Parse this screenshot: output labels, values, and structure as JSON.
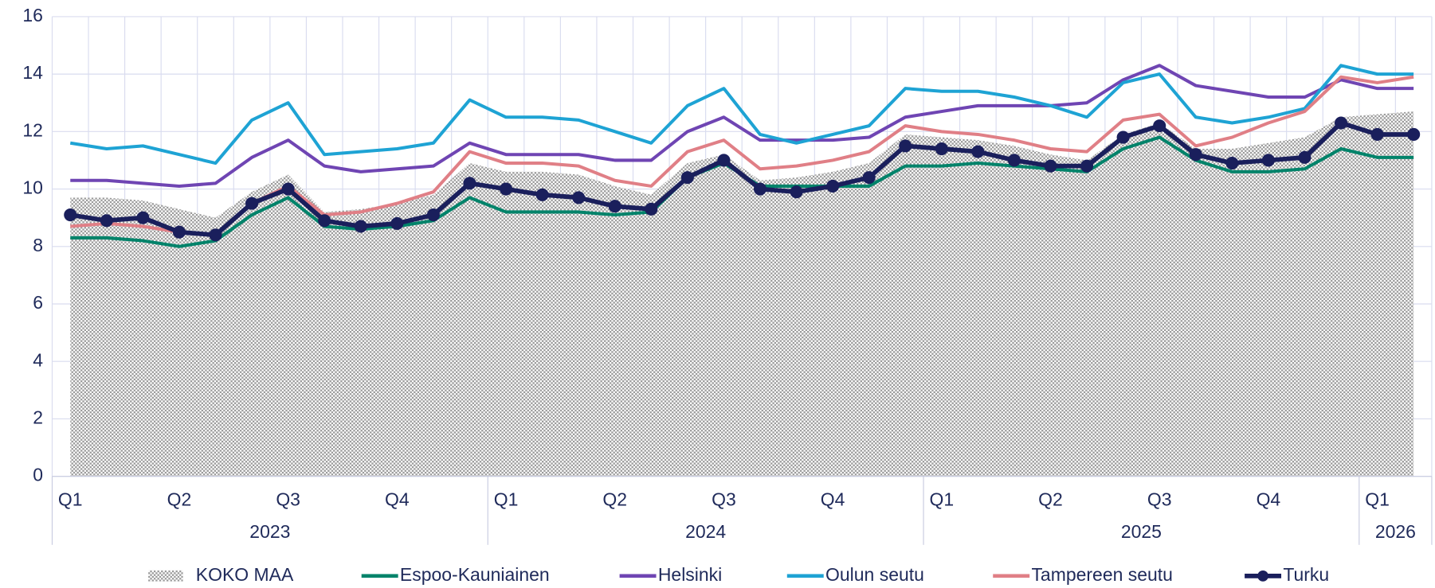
{
  "chart_data": {
    "type": "line",
    "categories": [
      "Q1",
      null,
      null,
      "Q2",
      null,
      null,
      "Q3",
      null,
      null,
      "Q4",
      null,
      null,
      "Q1",
      null,
      null,
      "Q2",
      null,
      null,
      "Q3",
      null,
      null,
      "Q4",
      null,
      null,
      "Q1",
      null,
      null,
      "Q2",
      null,
      null,
      "Q3",
      null,
      null,
      "Q4",
      null,
      null,
      "Q1",
      null
    ],
    "year_groups": [
      {
        "label": "2023",
        "months": 12
      },
      {
        "label": "2024",
        "months": 12
      },
      {
        "label": "2025",
        "months": 12
      },
      {
        "label": "2026",
        "months": 2
      }
    ],
    "ylim": [
      0,
      16
    ],
    "yticks": [
      0,
      2,
      4,
      6,
      8,
      10,
      12,
      14,
      16
    ],
    "grid": true,
    "legend": "bottom",
    "series": [
      {
        "name": "KOKO MAA",
        "color": "#a6a6a6",
        "kind": "area",
        "values": [
          9.7,
          9.7,
          9.6,
          9.3,
          9.0,
          9.9,
          10.5,
          9.2,
          9.3,
          9.5,
          9.8,
          10.9,
          10.6,
          10.6,
          10.5,
          10.1,
          9.8,
          10.9,
          11.2,
          10.3,
          10.4,
          10.6,
          10.9,
          11.9,
          11.8,
          11.7,
          11.5,
          11.2,
          11.0,
          11.9,
          12.3,
          11.4,
          11.4,
          11.6,
          11.8,
          12.5,
          12.6,
          12.7
        ]
      },
      {
        "name": "Espoo-Kauniainen",
        "color": "#00836a",
        "kind": "line",
        "values": [
          8.3,
          8.3,
          8.2,
          8.0,
          8.2,
          9.1,
          9.7,
          8.7,
          8.6,
          8.7,
          8.9,
          9.7,
          9.2,
          9.2,
          9.2,
          9.1,
          9.2,
          10.4,
          10.9,
          10.1,
          10.1,
          10.1,
          10.1,
          10.8,
          10.8,
          10.9,
          10.8,
          10.7,
          10.6,
          11.4,
          11.8,
          11.0,
          10.6,
          10.6,
          10.7,
          11.4,
          11.1,
          11.1
        ]
      },
      {
        "name": "Helsinki",
        "color": "#6f45b3",
        "kind": "line",
        "values": [
          10.3,
          10.3,
          10.2,
          10.1,
          10.2,
          11.1,
          11.7,
          10.8,
          10.6,
          10.7,
          10.8,
          11.6,
          11.2,
          11.2,
          11.2,
          11.0,
          11.0,
          12.0,
          12.5,
          11.7,
          11.7,
          11.7,
          11.8,
          12.5,
          12.7,
          12.9,
          12.9,
          12.9,
          13.0,
          13.8,
          14.3,
          13.6,
          13.4,
          13.2,
          13.2,
          13.8,
          13.5,
          13.5
        ]
      },
      {
        "name": "Oulun seutu",
        "color": "#1ea3d4",
        "kind": "line",
        "values": [
          11.6,
          11.4,
          11.5,
          11.2,
          10.9,
          12.4,
          13.0,
          11.2,
          11.3,
          11.4,
          11.6,
          13.1,
          12.5,
          12.5,
          12.4,
          12.0,
          11.6,
          12.9,
          13.5,
          11.9,
          11.6,
          11.9,
          12.2,
          13.5,
          13.4,
          13.4,
          13.2,
          12.9,
          12.5,
          13.7,
          14.0,
          12.5,
          12.3,
          12.5,
          12.8,
          14.3,
          14.0,
          14.0
        ]
      },
      {
        "name": "Tampereen seutu",
        "color": "#e07f86",
        "kind": "line",
        "values": [
          8.7,
          8.8,
          8.7,
          8.5,
          8.4,
          9.5,
          10.1,
          9.1,
          9.2,
          9.5,
          9.9,
          11.3,
          10.9,
          10.9,
          10.8,
          10.3,
          10.1,
          11.3,
          11.7,
          10.7,
          10.8,
          11.0,
          11.3,
          12.2,
          12.0,
          11.9,
          11.7,
          11.4,
          11.3,
          12.4,
          12.6,
          11.5,
          11.8,
          12.3,
          12.7,
          13.9,
          13.7,
          13.9
        ]
      },
      {
        "name": "Turku",
        "color": "#1a1f5c",
        "kind": "line",
        "markers": true,
        "values": [
          9.1,
          8.9,
          9.0,
          8.5,
          8.4,
          9.5,
          10.0,
          8.9,
          8.7,
          8.8,
          9.1,
          10.2,
          10.0,
          9.8,
          9.7,
          9.4,
          9.3,
          10.4,
          11.0,
          10.0,
          9.9,
          10.1,
          10.4,
          11.5,
          11.4,
          11.3,
          11.0,
          10.8,
          10.8,
          11.8,
          12.2,
          11.2,
          10.9,
          11.0,
          11.1,
          12.3,
          11.9,
          11.9
        ]
      }
    ]
  }
}
